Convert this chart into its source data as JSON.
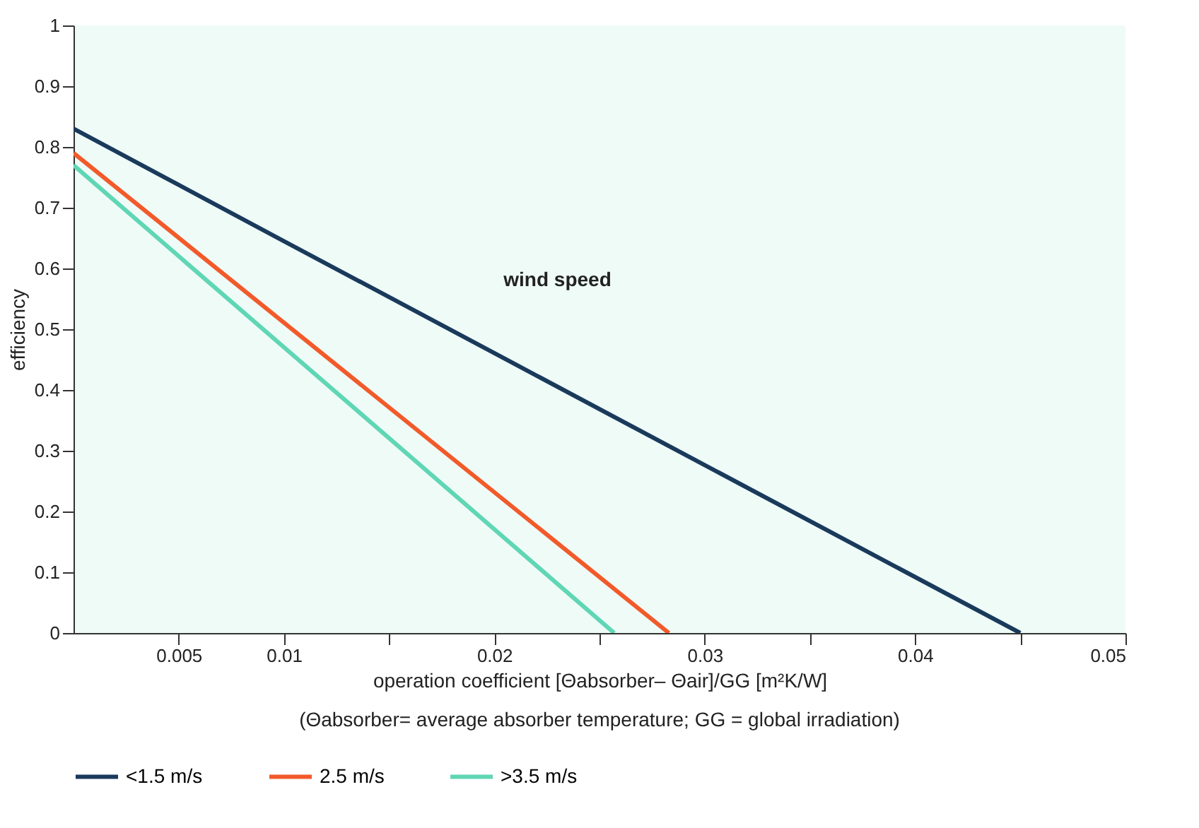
{
  "chart_data": {
    "type": "line",
    "xlabel": "operation coefficient [Θabsorber– Θair]/GG [m²K/W]",
    "ylabel": "efficiency",
    "annotations": [
      "(Θabsorber= average absorber temperature; GG = global irradiation)",
      "wind speed"
    ],
    "series": [
      {
        "name": "<1.5 m/s",
        "color": "#1a3a5c",
        "x": [
          0,
          0.01,
          0.045
        ],
        "values": [
          0.83,
          0.645,
          0
        ]
      },
      {
        "name": "2.5 m/s",
        "color": "#f25a2a",
        "x": [
          0,
          0.0283
        ],
        "values": [
          0.79,
          0
        ]
      },
      {
        "name": ">3.5 m/s",
        "color": "#5fd6b4",
        "x": [
          0,
          0.0257
        ],
        "values": [
          0.77,
          0
        ]
      }
    ],
    "xlim": [
      0,
      0.05
    ],
    "xticks": [
      0.005,
      0.01,
      {
        "value": 0.015,
        "label": null
      },
      0.02,
      {
        "value": 0.025,
        "label": null
      },
      0.03,
      {
        "value": 0.035,
        "label": null
      },
      0.04,
      {
        "value": 0.045,
        "label": null
      },
      0.05
    ],
    "ylim": [
      0,
      1
    ],
    "yticks": [
      0,
      0.1,
      0.2,
      0.3,
      0.4,
      0.5,
      0.6,
      0.7,
      0.8,
      0.9,
      1
    ],
    "legend": "bottom left",
    "grid": false
  }
}
